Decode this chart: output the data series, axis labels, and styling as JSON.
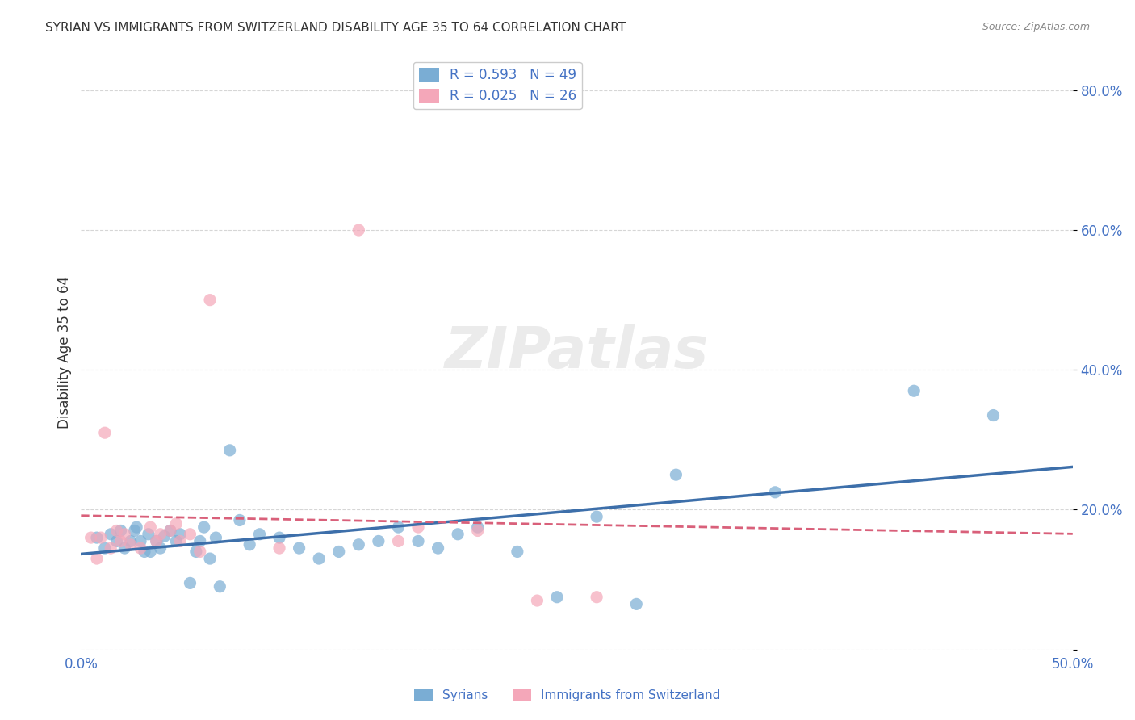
{
  "title": "SYRIAN VS IMMIGRANTS FROM SWITZERLAND DISABILITY AGE 35 TO 64 CORRELATION CHART",
  "source": "Source: ZipAtlas.com",
  "xlabel_color": "#4472c4",
  "ylabel": "Disability Age 35 to 64",
  "xlim": [
    0.0,
    0.5
  ],
  "ylim": [
    0.0,
    0.85
  ],
  "xticks": [
    0.0,
    0.1,
    0.2,
    0.3,
    0.4,
    0.5
  ],
  "yticks": [
    0.0,
    0.2,
    0.4,
    0.6,
    0.8
  ],
  "ytick_labels": [
    "",
    "20.0%",
    "40.0%",
    "60.0%",
    "80.0%"
  ],
  "xtick_labels": [
    "0.0%",
    "",
    "",
    "",
    "",
    "50.0%"
  ],
  "grid_color": "#cccccc",
  "background_color": "#ffffff",
  "syrians_color": "#7aadd4",
  "swiss_color": "#f4a7b9",
  "syrians_line_color": "#3d6faa",
  "swiss_line_color": "#d9607a",
  "legend_syrians_label": "R = 0.593   N = 49",
  "legend_swiss_label": "R = 0.025   N = 26",
  "legend_label_color": "#4472c4",
  "syrians_R": 0.593,
  "syrians_N": 49,
  "swiss_R": 0.025,
  "swiss_N": 26,
  "watermark": "ZIPatlas",
  "bottom_legend_syrians": "Syrians",
  "bottom_legend_swiss": "Immigrants from Switzerland",
  "syrians_x": [
    0.008,
    0.012,
    0.015,
    0.018,
    0.02,
    0.022,
    0.025,
    0.027,
    0.028,
    0.03,
    0.032,
    0.034,
    0.035,
    0.038,
    0.04,
    0.042,
    0.045,
    0.048,
    0.05,
    0.055,
    0.058,
    0.06,
    0.062,
    0.065,
    0.068,
    0.07,
    0.075,
    0.08,
    0.085,
    0.09,
    0.1,
    0.11,
    0.12,
    0.13,
    0.14,
    0.15,
    0.16,
    0.17,
    0.18,
    0.19,
    0.2,
    0.22,
    0.24,
    0.26,
    0.28,
    0.3,
    0.35,
    0.42,
    0.46
  ],
  "syrians_y": [
    0.16,
    0.145,
    0.165,
    0.155,
    0.17,
    0.145,
    0.155,
    0.17,
    0.175,
    0.155,
    0.14,
    0.165,
    0.14,
    0.155,
    0.145,
    0.162,
    0.17,
    0.155,
    0.165,
    0.095,
    0.14,
    0.155,
    0.175,
    0.13,
    0.16,
    0.09,
    0.285,
    0.185,
    0.15,
    0.165,
    0.16,
    0.145,
    0.13,
    0.14,
    0.15,
    0.155,
    0.175,
    0.155,
    0.145,
    0.165,
    0.175,
    0.14,
    0.075,
    0.19,
    0.065,
    0.25,
    0.225,
    0.37,
    0.335
  ],
  "swiss_x": [
    0.005,
    0.008,
    0.01,
    0.012,
    0.015,
    0.018,
    0.02,
    0.022,
    0.025,
    0.03,
    0.035,
    0.038,
    0.04,
    0.045,
    0.048,
    0.05,
    0.055,
    0.06,
    0.065,
    0.1,
    0.14,
    0.16,
    0.17,
    0.2,
    0.23,
    0.26
  ],
  "swiss_y": [
    0.16,
    0.13,
    0.16,
    0.31,
    0.145,
    0.17,
    0.155,
    0.165,
    0.15,
    0.145,
    0.175,
    0.155,
    0.165,
    0.17,
    0.18,
    0.155,
    0.165,
    0.14,
    0.5,
    0.145,
    0.6,
    0.155,
    0.175,
    0.17,
    0.07,
    0.075
  ]
}
